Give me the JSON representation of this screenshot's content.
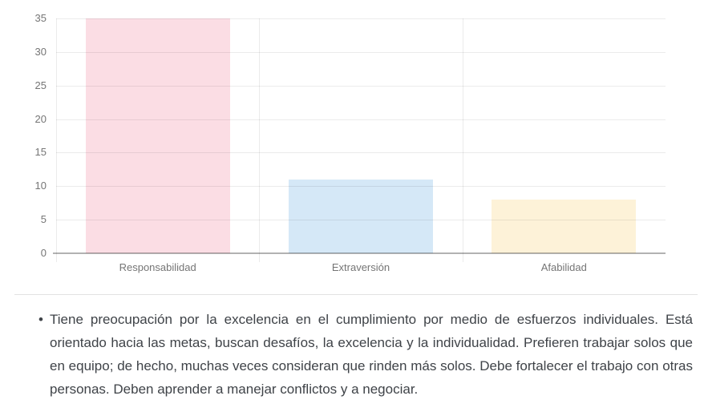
{
  "chart_data": {
    "type": "bar",
    "categories": [
      "Responsabilidad",
      "Extraversión",
      "Afabilidad"
    ],
    "values": [
      35,
      11,
      8
    ],
    "bar_colors": [
      "#fbdde4",
      "#d5e8f7",
      "#fdf2d8"
    ],
    "title": "",
    "xlabel": "",
    "ylabel": "",
    "ylim": [
      0,
      35
    ],
    "yticks": [
      0,
      5,
      10,
      15,
      20,
      25,
      30,
      35
    ],
    "grid": true,
    "legend": "none"
  },
  "description": {
    "bullet": "•",
    "text": "Tiene preocupación por la excelencia en el cumplimiento por medio de esfuerzos individuales. Está orientado hacia las metas, buscan desafíos, la excelencia y la individualidad. Prefieren trabajar solos que en equipo; de hecho, muchas veces consideran que rinden más solos. Debe fortalecer el trabajo con otras personas. Deben aprender a manejar conflictos y a negociar."
  },
  "colors": {
    "background": "#ffffff",
    "grid_line": "rgba(0,0,0,0.08)",
    "baseline": "rgba(0,0,0,0.30)",
    "axis_label": "#757575",
    "divider": "#e2e2e2",
    "text": "#3f4348"
  }
}
